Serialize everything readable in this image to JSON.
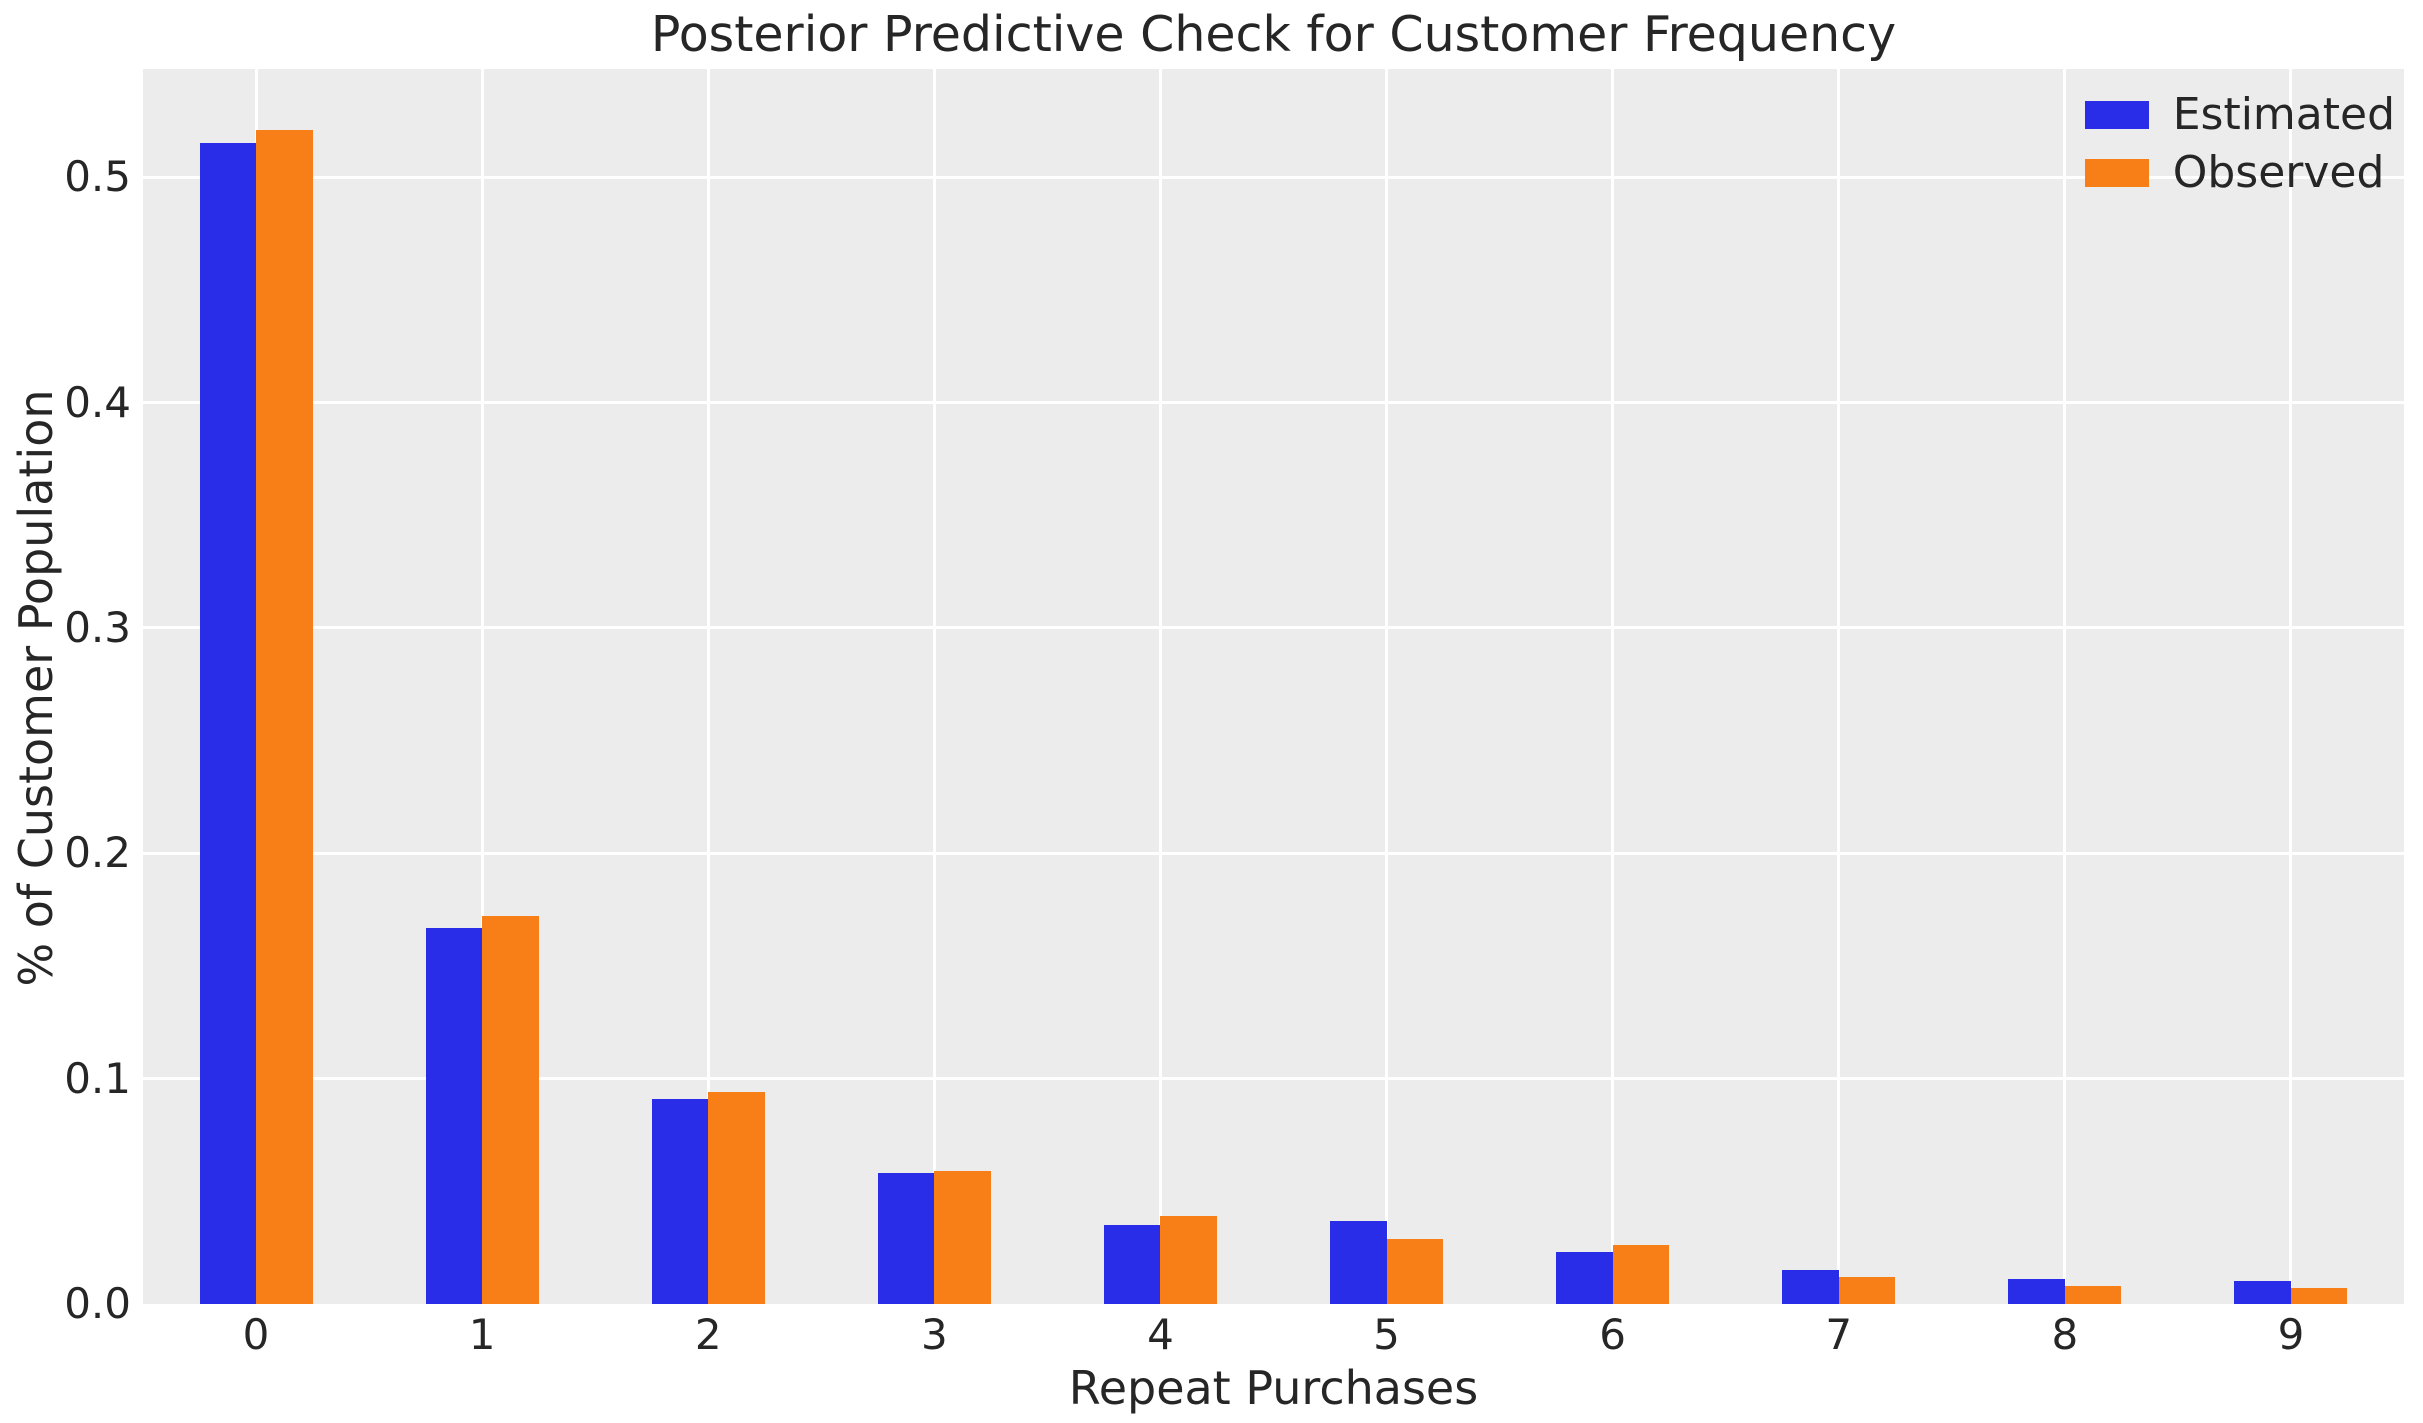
{
  "chart_data": {
    "type": "bar",
    "title": "Posterior Predictive Check for Customer Frequency",
    "xlabel": "Repeat Purchases",
    "ylabel": "% of Customer Population",
    "categories": [
      "0",
      "1",
      "2",
      "3",
      "4",
      "5",
      "6",
      "7",
      "8",
      "9"
    ],
    "series": [
      {
        "name": "Estimated",
        "color": "#2a2de8",
        "values": [
          0.515,
          0.167,
          0.091,
          0.058,
          0.035,
          0.037,
          0.023,
          0.015,
          0.011,
          0.01
        ]
      },
      {
        "name": "Observed",
        "color": "#f87e17",
        "values": [
          0.521,
          0.172,
          0.094,
          0.059,
          0.039,
          0.029,
          0.026,
          0.012,
          0.008,
          0.007
        ]
      }
    ],
    "yticks": [
      "0.0",
      "0.1",
      "0.2",
      "0.3",
      "0.4",
      "0.5"
    ],
    "ylim": [
      0,
      0.548
    ],
    "grid": true,
    "legend_position": "upper right",
    "colors": {
      "axes_background": "#ececec",
      "gridline": "#ffffff",
      "text": "#262626",
      "figure_background": "#ffffff"
    }
  }
}
